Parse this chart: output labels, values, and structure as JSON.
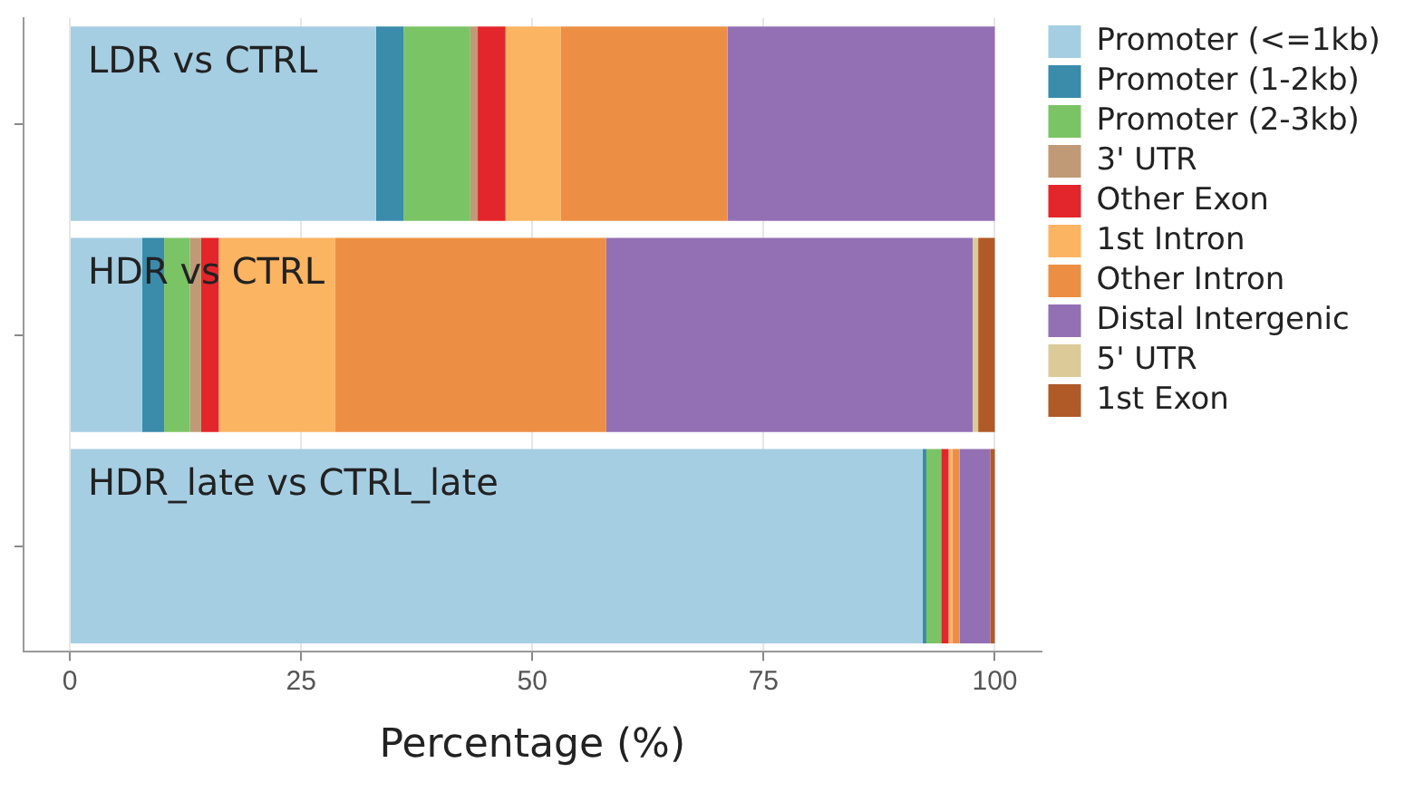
{
  "chart_data": {
    "type": "bar",
    "orientation": "horizontal",
    "stacked": true,
    "xlabel": "Percentage (%)",
    "categories": [
      "LDR vs CTRL",
      "HDR vs CTRL",
      "HDR_late vs CTRL_late"
    ],
    "series": [
      {
        "name": "Promoter (<=1kb)",
        "color": "#a6cee3",
        "values": [
          33.1,
          7.8,
          92.2
        ]
      },
      {
        "name": "Promoter (1-2kb)",
        "color": "#3b8bab",
        "values": [
          3.0,
          2.4,
          0.4
        ]
      },
      {
        "name": "Promoter (2-3kb)",
        "color": "#7bc466",
        "values": [
          7.2,
          2.8,
          1.6
        ]
      },
      {
        "name": "3' UTR",
        "color": "#c09a76",
        "values": [
          0.8,
          1.2,
          0
        ]
      },
      {
        "name": "Other Exon",
        "color": "#e3262b",
        "values": [
          3.0,
          1.9,
          0.8
        ]
      },
      {
        "name": "1st Intron",
        "color": "#fbb462",
        "values": [
          6.0,
          12.6,
          0.4
        ]
      },
      {
        "name": "Other Intron",
        "color": "#ec8f45",
        "values": [
          18.0,
          29.3,
          0.8
        ]
      },
      {
        "name": "Distal Intergenic",
        "color": "#9370b4",
        "values": [
          28.9,
          39.6,
          3.3
        ]
      },
      {
        "name": "5' UTR",
        "color": "#dccb98",
        "values": [
          0,
          0.6,
          0
        ]
      },
      {
        "name": "1st Exon",
        "color": "#b05a28",
        "values": [
          0,
          1.8,
          0.5
        ]
      }
    ],
    "xlim": [
      -5,
      105
    ],
    "xticks": [
      0,
      25,
      50,
      75,
      100
    ],
    "grid": "x",
    "legend": "right",
    "tick_labels": "x"
  }
}
